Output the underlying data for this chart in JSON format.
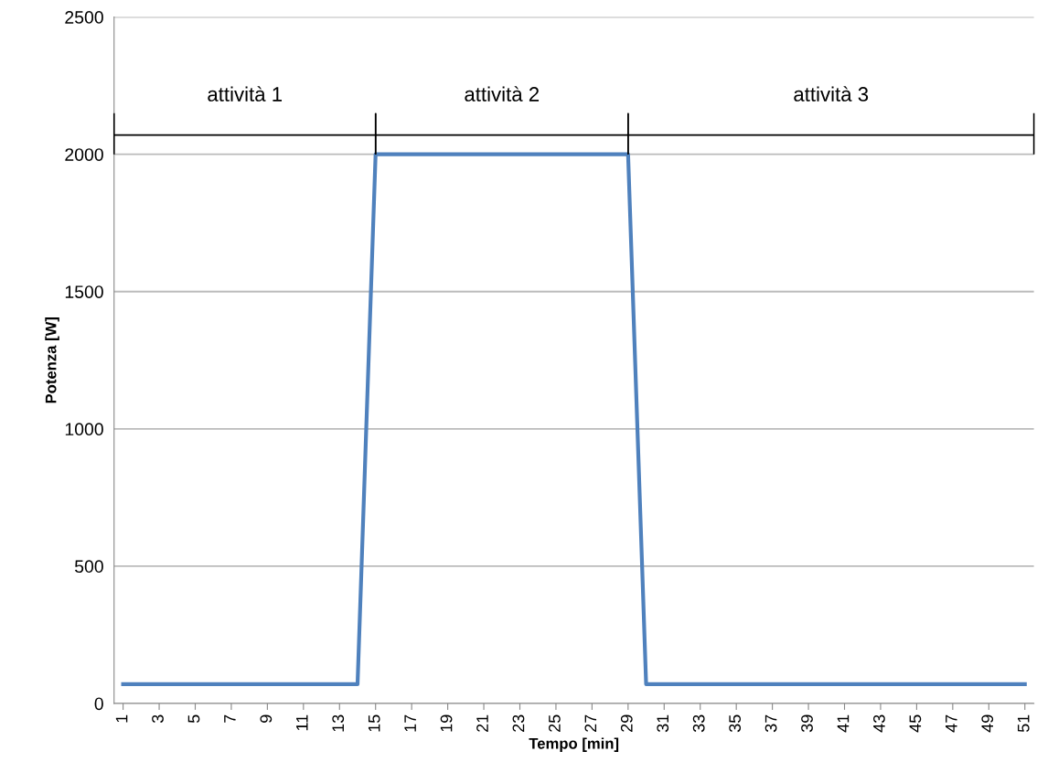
{
  "chart_data": {
    "type": "line",
    "xlabel": "Tempo [min]",
    "ylabel": "Potenza [W]",
    "x": [
      1,
      2,
      3,
      4,
      5,
      6,
      7,
      8,
      9,
      10,
      11,
      12,
      13,
      14,
      15,
      16,
      17,
      18,
      19,
      20,
      21,
      22,
      23,
      24,
      25,
      26,
      27,
      28,
      29,
      30,
      31,
      32,
      33,
      34,
      35,
      36,
      37,
      38,
      39,
      40,
      41,
      42,
      43,
      44,
      45,
      46,
      47,
      48,
      49,
      50,
      51
    ],
    "series": [
      {
        "color": "#4f81bd",
        "values": [
          70,
          70,
          70,
          70,
          70,
          70,
          70,
          70,
          70,
          70,
          70,
          70,
          70,
          70,
          2000,
          2000,
          2000,
          2000,
          2000,
          2000,
          2000,
          2000,
          2000,
          2000,
          2000,
          2000,
          2000,
          2000,
          2000,
          70,
          70,
          70,
          70,
          70,
          70,
          70,
          70,
          70,
          70,
          70,
          70,
          70,
          70,
          70,
          70,
          70,
          70,
          70,
          70,
          70,
          70
        ]
      }
    ],
    "xlim": [
      0.5,
      51.5
    ],
    "xticks": [
      1,
      3,
      5,
      7,
      9,
      11,
      13,
      15,
      17,
      19,
      21,
      23,
      25,
      27,
      29,
      31,
      33,
      35,
      37,
      39,
      41,
      43,
      45,
      47,
      49,
      51
    ],
    "ylim": [
      0,
      2500
    ],
    "yticks": [
      0,
      500,
      1000,
      1500,
      2000,
      2500
    ],
    "grid": "y",
    "legend": false,
    "marker": "none",
    "line_style": "solid",
    "annotations": [
      "attività 1",
      "attività 2",
      "attività 3"
    ]
  }
}
